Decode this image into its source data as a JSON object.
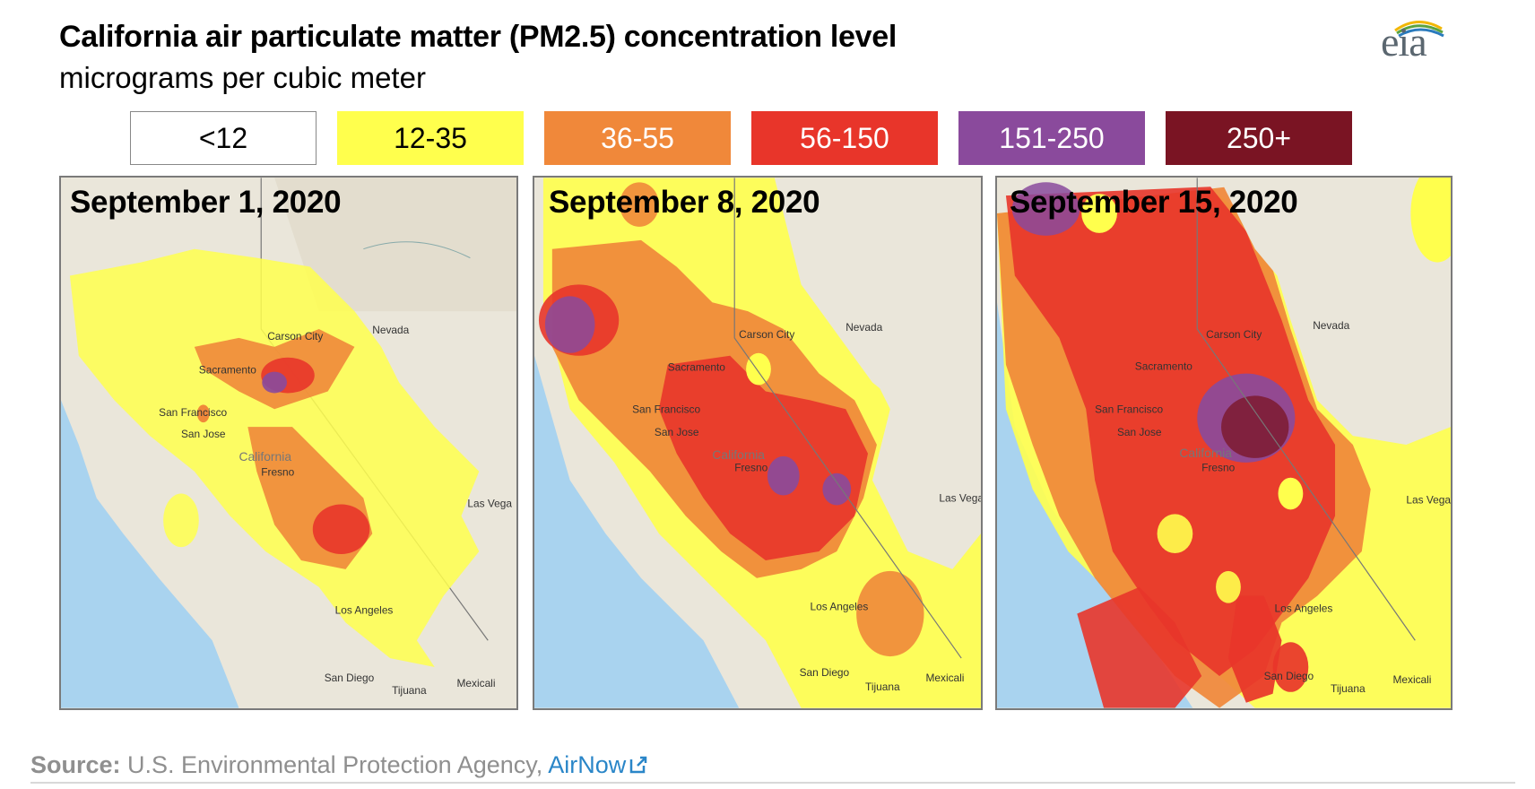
{
  "header": {
    "title": "California air particulate matter (PM2.5) concentration level",
    "subtitle": "micrograms per cubic meter"
  },
  "logo": {
    "text": "eia",
    "icon": "eia-logo-icon"
  },
  "legend": [
    {
      "label": "<12",
      "color": "#ffffff",
      "text_color": "#000000"
    },
    {
      "label": "12-35",
      "color": "#ffff4d",
      "text_color": "#000000"
    },
    {
      "label": "36-55",
      "color": "#f0883a",
      "text_color": "#ffffff"
    },
    {
      "label": "56-150",
      "color": "#e8352a",
      "text_color": "#ffffff"
    },
    {
      "label": "151-250",
      "color": "#8a4a9c",
      "text_color": "#ffffff"
    },
    {
      "label": "250+",
      "color": "#7a1423",
      "text_color": "#ffffff"
    }
  ],
  "panels": [
    {
      "date": "September 1, 2020"
    },
    {
      "date": "September 8, 2020"
    },
    {
      "date": "September 15, 2020"
    }
  ],
  "map_labels": {
    "nevada": "Nevada",
    "carson_city": "Carson City",
    "sacramento": "Sacramento",
    "san_francisco": "San Francisco",
    "san_jose": "San Jose",
    "california": "California",
    "fresno": "Fresno",
    "las_vegas": "Las Vega",
    "los_angeles": "Los Angeles",
    "san_diego": "San Diego",
    "tijuana": "Tijuana",
    "mexicali": "Mexicali"
  },
  "source": {
    "label": "Source:",
    "text": " U.S. Environmental Protection Agency, ",
    "link": "AirNow",
    "link_icon": "external-link-icon"
  }
}
